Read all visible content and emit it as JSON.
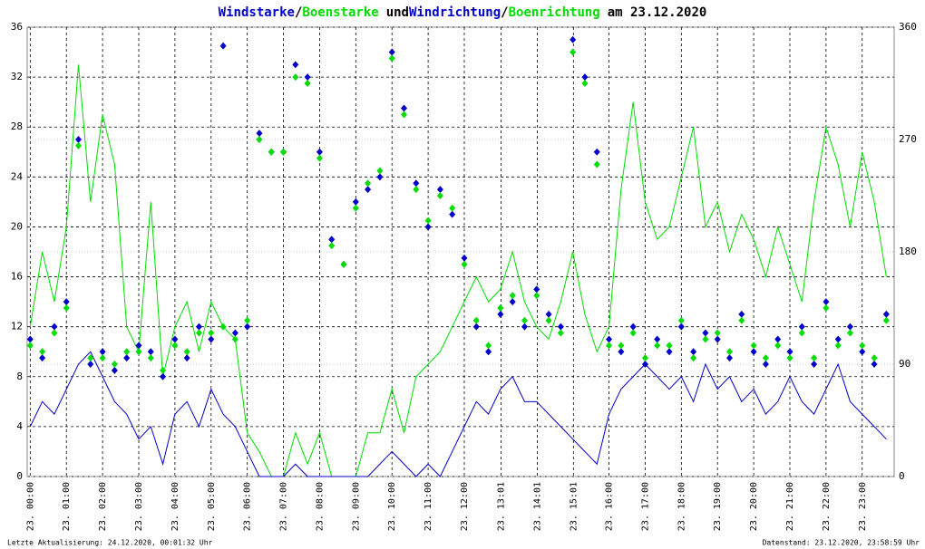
{
  "chart_data": {
    "type": "line",
    "title_connectors": [
      "/",
      "und",
      "/",
      "am 23.12.2020"
    ],
    "x": [
      0,
      20,
      40,
      60,
      80,
      100,
      120,
      140,
      160,
      180,
      200,
      220,
      240,
      260,
      280,
      300,
      320,
      340,
      360,
      380,
      400,
      420,
      440,
      460,
      480,
      500,
      520,
      540,
      560,
      580,
      600,
      620,
      640,
      660,
      680,
      700,
      720,
      740,
      760,
      780,
      800,
      820,
      840,
      860,
      880,
      900,
      920,
      940,
      960,
      980,
      1000,
      1020,
      1040,
      1060,
      1080,
      1100,
      1120,
      1140,
      1160,
      1180,
      1200,
      1220,
      1240,
      1260,
      1280,
      1300,
      1320,
      1340,
      1360,
      1380,
      1400,
      1420
    ],
    "series": [
      {
        "name": "Windstarke",
        "color": "#0000cc",
        "style": "line",
        "values": [
          4,
          6,
          5,
          7,
          9,
          10,
          8,
          6,
          5,
          3,
          4,
          1,
          5,
          6,
          4,
          7,
          5,
          4,
          2,
          0,
          0,
          0,
          1,
          0,
          0,
          0,
          0,
          0,
          0,
          1,
          2,
          1,
          0,
          1,
          0,
          2,
          4,
          6,
          5,
          7,
          8,
          6,
          6,
          5,
          4,
          3,
          2,
          1,
          5,
          7,
          8,
          9,
          8,
          7,
          8,
          6,
          9,
          7,
          8,
          6,
          7,
          5,
          6,
          8,
          6,
          5,
          7,
          9,
          6,
          5,
          4,
          3
        ]
      },
      {
        "name": "Boenstarke",
        "color": "#00dd00",
        "style": "line",
        "values": [
          12,
          18,
          14,
          20,
          33,
          22,
          29,
          25,
          12,
          10,
          22,
          8,
          12,
          14,
          10,
          14,
          12,
          11,
          3.5,
          2,
          0,
          0,
          3.5,
          1,
          3.5,
          0,
          0,
          0,
          3.5,
          3.5,
          7,
          3.5,
          8,
          9,
          10,
          12,
          14,
          16,
          14,
          15,
          18,
          14,
          12,
          11,
          14,
          18,
          13,
          10,
          12,
          23,
          30,
          22,
          19,
          20,
          24,
          28,
          20,
          22,
          18,
          21,
          19,
          16,
          20,
          17,
          14,
          22,
          28,
          25,
          20,
          26,
          22,
          16
        ]
      },
      {
        "name": "Windrichtung",
        "color": "#0000cc",
        "style": "points",
        "axis": "y2",
        "values": [
          110,
          95,
          120,
          140,
          270,
          90,
          100,
          85,
          95,
          105,
          100,
          80,
          110,
          95,
          120,
          110,
          345,
          115,
          120,
          275,
          260,
          260,
          330,
          320,
          260,
          190,
          170,
          220,
          230,
          240,
          340,
          295,
          235,
          200,
          230,
          210,
          175,
          120,
          100,
          130,
          140,
          120,
          150,
          130,
          120,
          350,
          320,
          260,
          110,
          100,
          120,
          90,
          110,
          100,
          120,
          100,
          115,
          110,
          95,
          130,
          100,
          90,
          110,
          100,
          120,
          90,
          140,
          110,
          120,
          100,
          90,
          130
        ]
      },
      {
        "name": "Boenrichtung",
        "color": "#00dd00",
        "style": "points",
        "axis": "y2",
        "values": [
          105,
          100,
          115,
          135,
          265,
          95,
          95,
          90,
          100,
          100,
          95,
          85,
          105,
          100,
          115,
          115,
          120,
          110,
          125,
          270,
          260,
          260,
          320,
          315,
          255,
          185,
          170,
          215,
          235,
          245,
          335,
          290,
          230,
          205,
          225,
          215,
          170,
          125,
          105,
          135,
          145,
          125,
          145,
          125,
          115,
          340,
          315,
          250,
          105,
          105,
          115,
          95,
          105,
          105,
          125,
          95,
          110,
          115,
          100,
          125,
          105,
          95,
          105,
          95,
          115,
          95,
          135,
          105,
          115,
          105,
          95,
          125
        ]
      }
    ],
    "xlim": [
      -5,
      1433
    ],
    "xticks": [
      {
        "value": 0,
        "label": "23. 00:00"
      },
      {
        "value": 60,
        "label": "23. 01:00"
      },
      {
        "value": 120,
        "label": "23. 02:00"
      },
      {
        "value": 180,
        "label": "23. 03:00"
      },
      {
        "value": 240,
        "label": "23. 04:00"
      },
      {
        "value": 300,
        "label": "23. 05:00"
      },
      {
        "value": 360,
        "label": "23. 06:00"
      },
      {
        "value": 420,
        "label": "23. 07:00"
      },
      {
        "value": 480,
        "label": "23. 08:00"
      },
      {
        "value": 540,
        "label": "23. 09:00"
      },
      {
        "value": 600,
        "label": "23. 10:00"
      },
      {
        "value": 660,
        "label": "23. 11:00"
      },
      {
        "value": 720,
        "label": "23. 12:00"
      },
      {
        "value": 781,
        "label": "23. 13:01"
      },
      {
        "value": 841,
        "label": "23. 14:01"
      },
      {
        "value": 901,
        "label": "23. 15:01"
      },
      {
        "value": 960,
        "label": "23. 16:00"
      },
      {
        "value": 1020,
        "label": "23. 17:00"
      },
      {
        "value": 1080,
        "label": "23. 18:00"
      },
      {
        "value": 1140,
        "label": "23. 19:00"
      },
      {
        "value": 1200,
        "label": "23. 20:00"
      },
      {
        "value": 1260,
        "label": "23. 21:00"
      },
      {
        "value": 1320,
        "label": "23. 22:00"
      },
      {
        "value": 1380,
        "label": "23. 23:00"
      }
    ],
    "ylim": [
      0,
      36
    ],
    "yticks": [
      0,
      4,
      8,
      12,
      16,
      20,
      24,
      28,
      32,
      36
    ],
    "y2lim": [
      0,
      360
    ],
    "y2ticks": [
      0,
      90,
      180,
      270,
      360
    ],
    "grid": true,
    "footer_left": "Letzte Aktualisierung: 24.12.2020, 00:01:32 Uhr",
    "footer_right": "Datenstand: 23.12.2020, 23:58:59 Uhr"
  }
}
